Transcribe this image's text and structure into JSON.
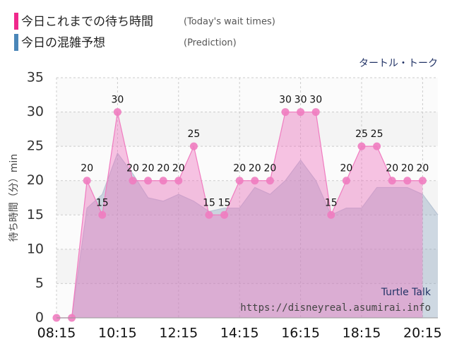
{
  "chart_data": {
    "type": "area",
    "title": "タートル・トーク",
    "ylabel": "待ち時間（分）min",
    "legend": [
      {
        "name": "今日これまでの待ち時間",
        "note": "(Today's wait times)",
        "color": "#f0288c"
      },
      {
        "name": "今日の混雑予想",
        "note": "(Prediction)",
        "color": "#4a86b8"
      }
    ],
    "annotations": [
      "Turtle Talk",
      "https://disneyreal.asumirai.info"
    ],
    "x": [
      "08:15",
      "08:45",
      "09:15",
      "09:45",
      "10:15",
      "10:45",
      "11:15",
      "11:45",
      "12:15",
      "12:45",
      "13:15",
      "13:45",
      "14:15",
      "14:45",
      "15:15",
      "15:45",
      "16:15",
      "16:45",
      "17:15",
      "17:45",
      "18:15",
      "18:45",
      "19:15",
      "19:45",
      "20:15",
      "20:45"
    ],
    "series": [
      {
        "name": "今日の混雑予想",
        "color": "#9fb4c8",
        "values": [
          0,
          0,
          16,
          18,
          24,
          21,
          17.5,
          17,
          18,
          17,
          15.5,
          16,
          16,
          19,
          18,
          20,
          23,
          20,
          15,
          16,
          16,
          19,
          19,
          19,
          18,
          15
        ]
      },
      {
        "name": "今日これまでの待ち時間",
        "color": "#f07cc0",
        "values": [
          0,
          0,
          20,
          15,
          30,
          20,
          20,
          20,
          20,
          25,
          15,
          15,
          20,
          20,
          20,
          30,
          30,
          30,
          15,
          20,
          25,
          25,
          20,
          20,
          20,
          null
        ]
      }
    ],
    "xlim": [
      "08:15",
      "20:45"
    ],
    "xticks": [
      "08:15",
      "10:15",
      "12:15",
      "14:15",
      "16:15",
      "18:15",
      "20:15"
    ],
    "ylim": [
      0,
      35
    ],
    "yticks": [
      0,
      5,
      10,
      15,
      20,
      25,
      30,
      35
    ],
    "grid": true
  }
}
